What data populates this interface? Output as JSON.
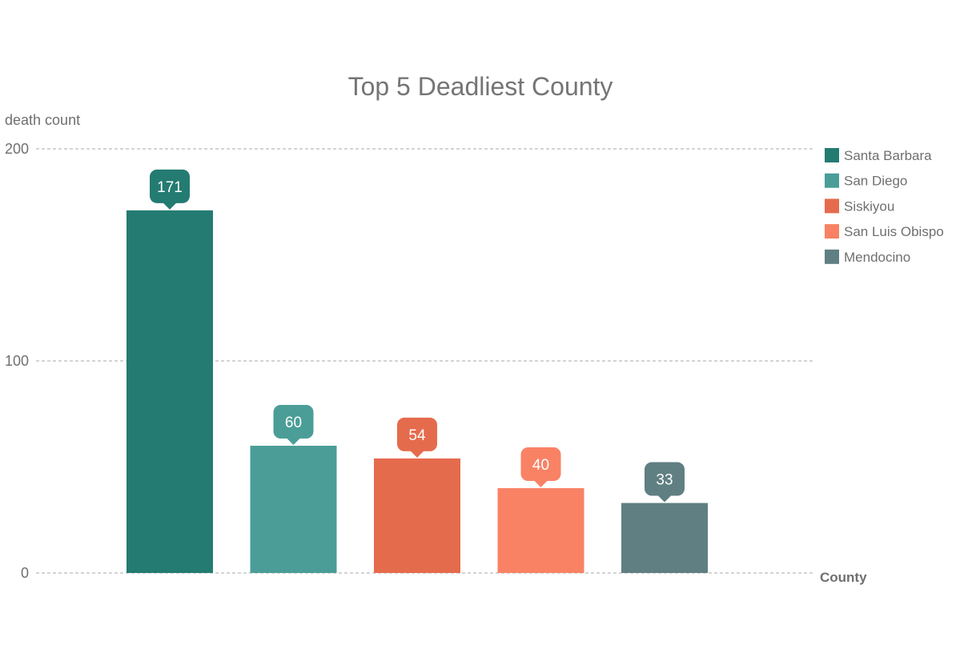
{
  "chart_data": {
    "type": "bar",
    "title": "Top 5 Deadliest County",
    "ylabel": "death count",
    "xlabel": "County",
    "categories": [
      "Santa Barbara",
      "San Diego",
      "Siskiyou",
      "San Luis Obispo",
      "Mendocino"
    ],
    "values": [
      171,
      60,
      54,
      40,
      33
    ],
    "colors": [
      "#237b72",
      "#4a9e97",
      "#e56b4d",
      "#f98265",
      "#607f82"
    ],
    "ylim": [
      0,
      200
    ],
    "yticks": [
      0,
      100,
      200
    ],
    "ytick_labels": [
      "0",
      "100",
      "200"
    ],
    "data_labels": [
      "171",
      "60",
      "54",
      "40",
      "33"
    ],
    "grid": true,
    "legend": {
      "position": "right",
      "entries": [
        "Santa Barbara",
        "San Diego",
        "Siskiyou",
        "San Luis Obispo",
        "Mendocino"
      ]
    }
  }
}
